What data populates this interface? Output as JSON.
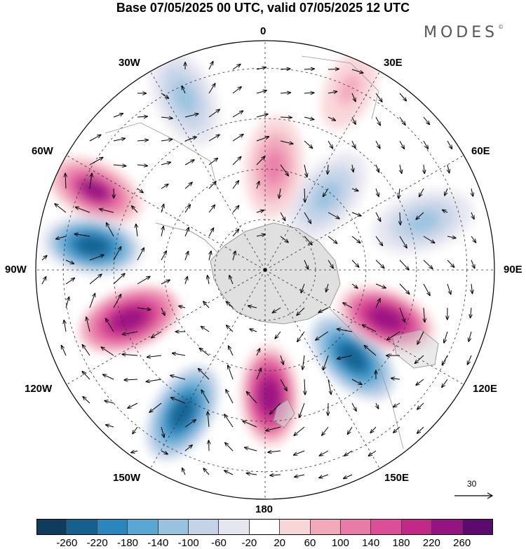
{
  "title": "Base 07/05/2025 00 UTC, valid 07/05/2025 12 UTC",
  "brand": "MODES",
  "brand_mark": "©",
  "longitude_labels": {
    "n0": "0",
    "n30e": "30E",
    "n60e": "60E",
    "n90e": "90E",
    "n120e": "120E",
    "n150e": "150E",
    "n180": "180",
    "n150w": "150W",
    "n120w": "120W",
    "n90w": "90W",
    "n60w": "60W",
    "n30w": "30W"
  },
  "reference_vector": "30",
  "colorbar": {
    "colors": [
      "#0f3b5c",
      "#15608f",
      "#2a86bd",
      "#5ba7d3",
      "#98c2df",
      "#c4d3e8",
      "#e6e6f1",
      "#ffffff",
      "#f8d6d8",
      "#f2a9bb",
      "#e97ba8",
      "#dc4f98",
      "#c22888",
      "#961382",
      "#5c0a6e"
    ],
    "ticks": [
      "-260",
      "-220",
      "-180",
      "-140",
      "-100",
      "-60",
      "-20",
      "20",
      "60",
      "100",
      "140",
      "180",
      "220",
      "260"
    ]
  },
  "anomalies": [
    {
      "lon": -65,
      "r": 0.82,
      "value": 220
    },
    {
      "lon": -82,
      "r": 0.76,
      "value": -230
    },
    {
      "lon": -110,
      "r": 0.63,
      "value": 240
    },
    {
      "lon": -150,
      "r": 0.72,
      "value": -250
    },
    {
      "lon": 178,
      "r": 0.55,
      "value": 230
    },
    {
      "lon": 135,
      "r": 0.54,
      "value": -260
    },
    {
      "lon": 112,
      "r": 0.57,
      "value": 230
    },
    {
      "lon": 73,
      "r": 0.72,
      "value": -120
    },
    {
      "lon": 40,
      "r": 0.42,
      "value": -110
    },
    {
      "lon": 5,
      "r": 0.45,
      "value": 120
    },
    {
      "lon": -25,
      "r": 0.83,
      "value": -110
    },
    {
      "lon": 25,
      "r": 0.87,
      "value": 60
    }
  ]
}
